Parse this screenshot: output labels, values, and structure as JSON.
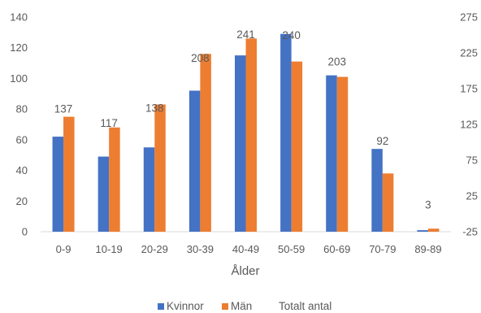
{
  "chart_data": {
    "type": "bar",
    "xlabel": "Ålder",
    "categories": [
      "0-9",
      "10-19",
      "20-29",
      "30-39",
      "40-49",
      "50-59",
      "60-69",
      "70-79",
      "89-89"
    ],
    "series": [
      {
        "name": "Kvinnor",
        "values": [
          62,
          49,
          55,
          92,
          115,
          129,
          102,
          54,
          1
        ],
        "color": "#4472C4",
        "axis": "left"
      },
      {
        "name": "Män",
        "values": [
          75,
          68,
          83,
          116,
          126,
          111,
          101,
          38,
          2
        ],
        "color": "#ED7D31",
        "axis": "left"
      },
      {
        "name": "Totalt antal",
        "values": [
          137,
          117,
          138,
          208,
          241,
          240,
          203,
          92,
          3
        ],
        "axis": "right",
        "shown_as": "data labels only"
      }
    ],
    "y_left": {
      "ylim": [
        0,
        140
      ],
      "ticks": [
        "0",
        "20",
        "40",
        "60",
        "80",
        "100",
        "120",
        "140"
      ]
    },
    "y_right": {
      "ylim": [
        -25,
        275
      ],
      "ticks": [
        "-25",
        "25",
        "75",
        "125",
        "175",
        "225",
        "275"
      ]
    },
    "legend": {
      "placement": "bottom",
      "items": [
        "Kvinnor",
        "Män",
        "Totalt antal"
      ]
    },
    "grid": false
  }
}
